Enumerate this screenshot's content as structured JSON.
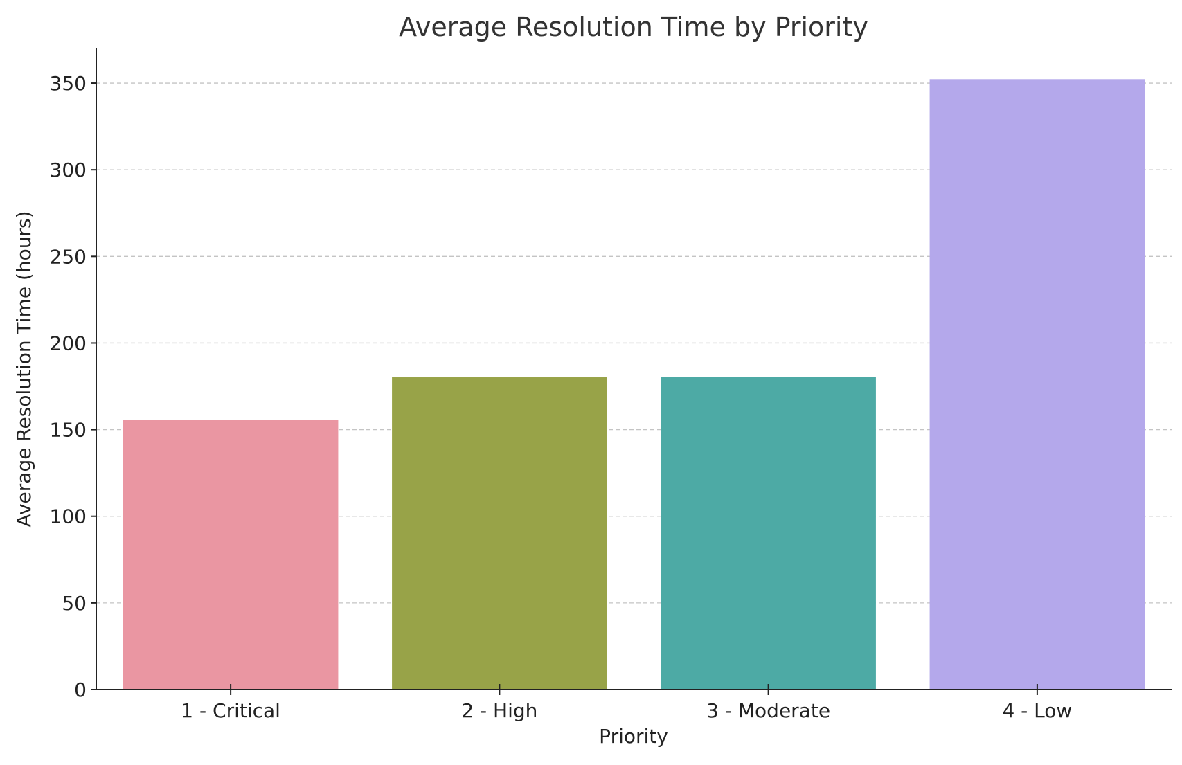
{
  "chart_data": {
    "type": "bar",
    "title": "Average Resolution Time by Priority",
    "xlabel": "Priority",
    "ylabel": "Average Resolution Time (hours)",
    "categories": [
      "1 - Critical",
      "2 - High",
      "3 - Moderate",
      "4 - Low"
    ],
    "values": [
      155.5,
      180.2,
      180.5,
      352.3
    ],
    "colors": [
      "#ea96a2",
      "#98a348",
      "#4daaa5",
      "#b4a8eb"
    ],
    "ylim": [
      0,
      370
    ],
    "yticks": [
      0,
      50,
      100,
      150,
      200,
      250,
      300,
      350
    ],
    "grid": "horizontal dashed",
    "legend": "none"
  }
}
